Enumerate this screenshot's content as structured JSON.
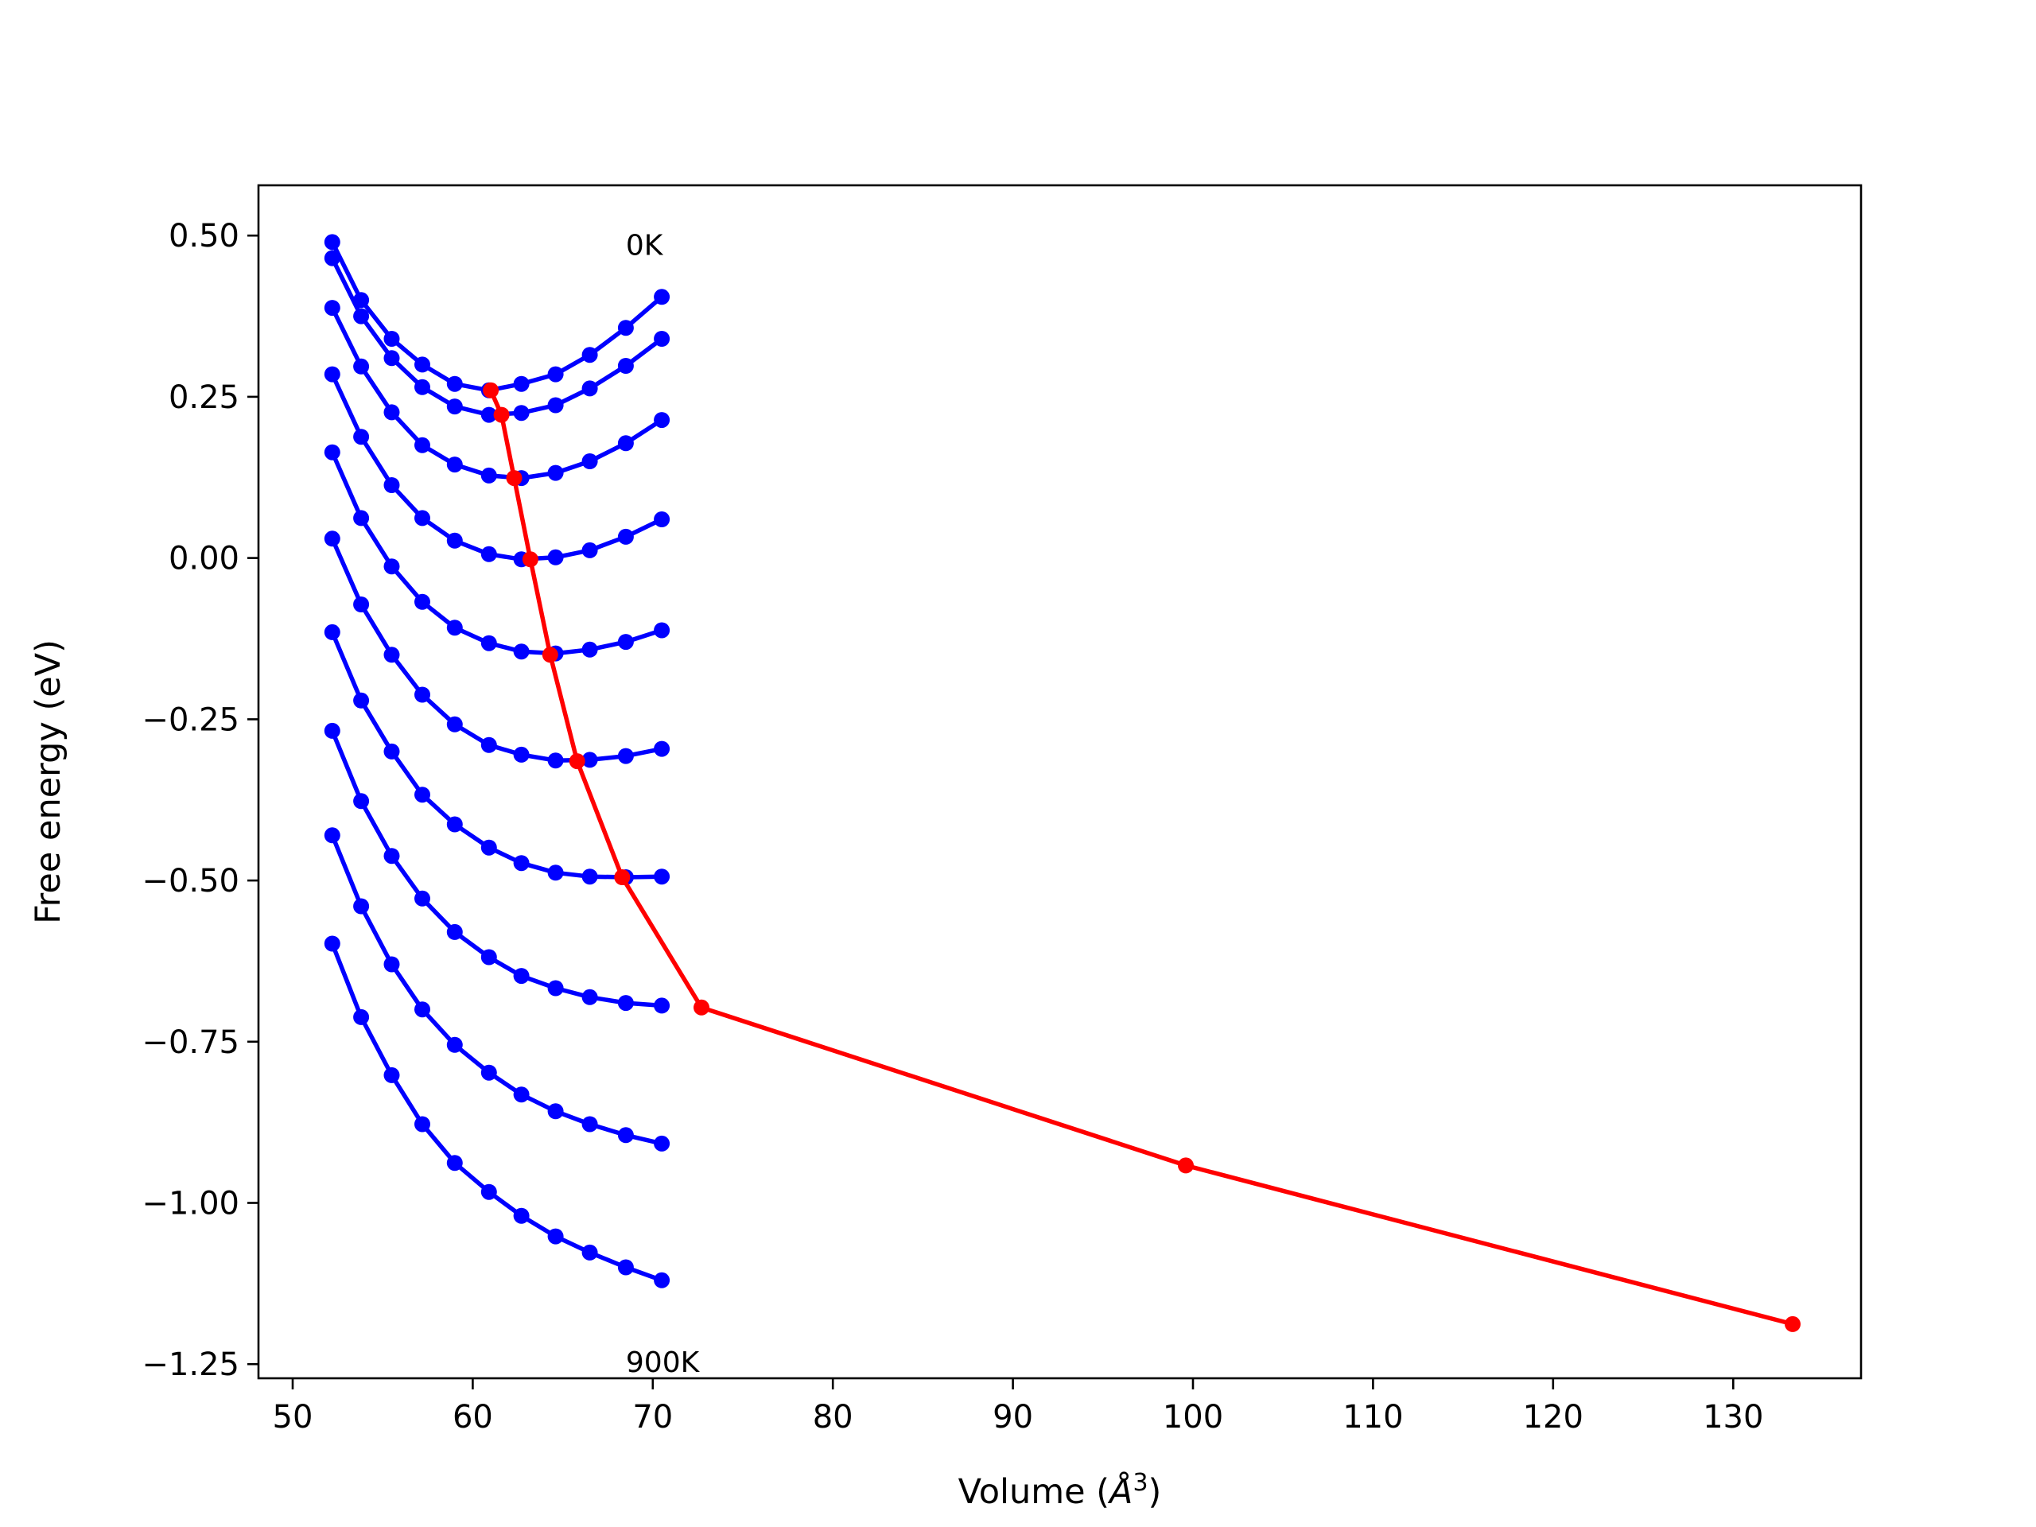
{
  "chart_data": {
    "type": "line",
    "title": "",
    "xlabel": "Volume (Å³)",
    "xlabel_main": "Volume (",
    "xlabel_unit": "Å",
    "xlabel_sup": "3",
    "xlabel_close": ")",
    "ylabel": "Free energy (eV)",
    "xlim": [
      48.1,
      137.1
    ],
    "ylim": [
      -1.272,
      0.578
    ],
    "xticks": [
      50,
      60,
      70,
      80,
      90,
      100,
      110,
      120,
      130
    ],
    "xtick_labels": [
      "50",
      "60",
      "70",
      "80",
      "90",
      "100",
      "110",
      "120",
      "130"
    ],
    "yticks": [
      0.5,
      0.25,
      0.0,
      -0.25,
      -0.5,
      -0.75,
      -1.0,
      -1.25
    ],
    "ytick_labels": [
      "0.50",
      "0.25",
      "0.00",
      "−0.25",
      "−0.50",
      "−0.75",
      "−1.00",
      "−1.25"
    ],
    "grid": false,
    "colors": {
      "isotherm": "#0000ff",
      "minimum": "#ff0000",
      "axes": "#000000"
    },
    "annotations": [
      {
        "text": "0K",
        "x": 68.5,
        "y": 0.47
      },
      {
        "text": "900K",
        "x": 68.5,
        "y": -1.262
      }
    ],
    "x": [
      52.2,
      53.8,
      55.5,
      57.2,
      59.0,
      60.9,
      62.7,
      64.6,
      66.5,
      68.5,
      70.5
    ],
    "series": [
      {
        "values": [
          0.49,
          0.4,
          0.34,
          0.3,
          0.27,
          0.26,
          0.27,
          0.285,
          0.315,
          0.357,
          0.405
        ]
      },
      {
        "values": [
          0.465,
          0.375,
          0.31,
          0.265,
          0.235,
          0.222,
          0.225,
          0.237,
          0.263,
          0.298,
          0.34
        ]
      },
      {
        "values": [
          0.388,
          0.297,
          0.226,
          0.175,
          0.145,
          0.128,
          0.124,
          0.132,
          0.15,
          0.178,
          0.214
        ]
      },
      {
        "values": [
          0.285,
          0.188,
          0.113,
          0.062,
          0.027,
          0.006,
          -0.002,
          0.001,
          0.012,
          0.033,
          0.06
        ]
      },
      {
        "values": [
          0.164,
          0.062,
          -0.013,
          -0.068,
          -0.108,
          -0.132,
          -0.145,
          -0.148,
          -0.142,
          -0.13,
          -0.112
        ]
      },
      {
        "values": [
          0.03,
          -0.072,
          -0.15,
          -0.212,
          -0.258,
          -0.29,
          -0.305,
          -0.314,
          -0.313,
          -0.307,
          -0.296
        ]
      },
      {
        "values": [
          -0.115,
          -0.221,
          -0.3,
          -0.367,
          -0.413,
          -0.449,
          -0.473,
          -0.488,
          -0.494,
          -0.495,
          -0.494
        ]
      },
      {
        "values": [
          -0.268,
          -0.377,
          -0.462,
          -0.528,
          -0.58,
          -0.619,
          -0.648,
          -0.667,
          -0.681,
          -0.69,
          -0.694
        ]
      },
      {
        "values": [
          -0.43,
          -0.54,
          -0.63,
          -0.7,
          -0.755,
          -0.798,
          -0.832,
          -0.858,
          -0.878,
          -0.895,
          -0.908
        ]
      },
      {
        "values": [
          -0.598,
          -0.712,
          -0.802,
          -0.878,
          -0.938,
          -0.983,
          -1.02,
          -1.052,
          -1.077,
          -1.1,
          -1.12
        ]
      }
    ],
    "minimum_curve": {
      "x": [
        61.0,
        61.6,
        62.3,
        63.2,
        64.3,
        65.8,
        68.3,
        72.7,
        99.6,
        133.3
      ],
      "y": [
        0.26,
        0.222,
        0.124,
        -0.002,
        -0.15,
        -0.315,
        -0.495,
        -0.697,
        -0.942,
        -1.188
      ]
    }
  }
}
